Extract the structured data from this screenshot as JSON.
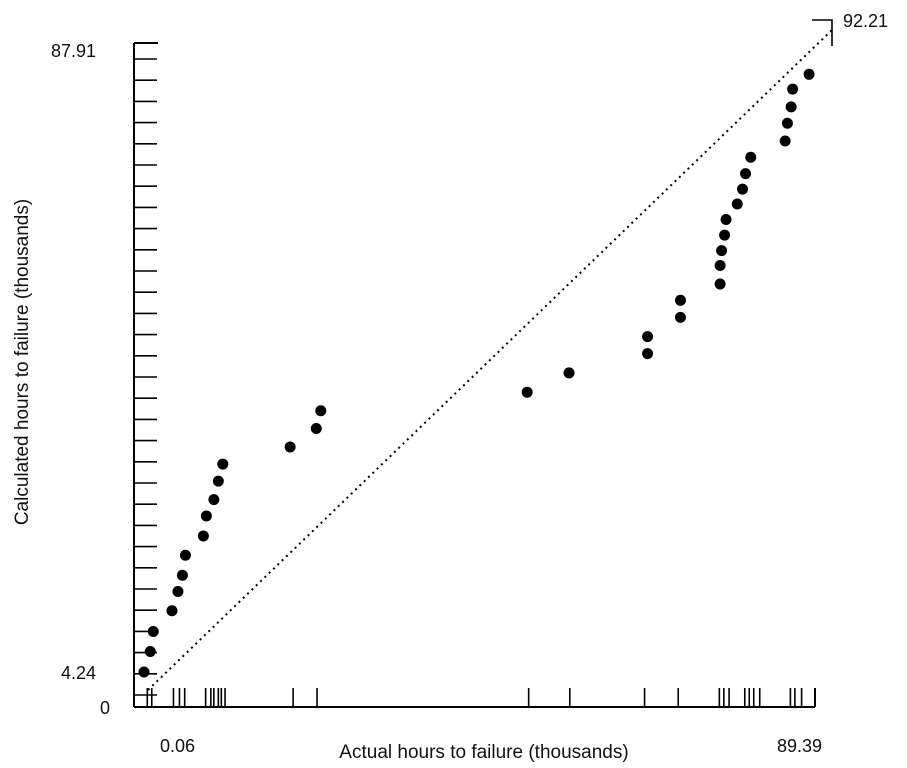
{
  "chart_data": {
    "type": "scatter",
    "title": "",
    "xlabel": "Actual hours to failure (thousands)",
    "ylabel": "Calculated hours to failure (thousands)",
    "xlim": [
      0,
      89.39
    ],
    "ylim": [
      0,
      92.21
    ],
    "y_origin_label": "0",
    "x_tick_labels": [
      "0.06",
      "89.39"
    ],
    "y_tick_labels": [
      "4.24",
      "87.91"
    ],
    "reference_line_label": "92.21",
    "grid": false,
    "legend": "none",
    "reference_line": {
      "from": [
        0.06,
        4.24
      ],
      "to": [
        89.39,
        92.21
      ],
      "style": "dotted"
    },
    "x_rug": [
      0.5,
      1.1,
      4.0,
      4.8,
      5.5,
      8.3,
      9.0,
      9.4,
      10.0,
      10.4,
      10.9,
      20.0,
      23.2,
      51.5,
      57.0,
      67.0,
      71.5,
      77.0,
      77.6,
      78.3,
      80.4,
      81.0,
      81.6,
      82.4,
      86.5,
      87.1,
      88.0
    ],
    "series": [
      {
        "color": "#000000",
        "points": [
          [
            0.06,
            4.24
          ],
          [
            0.9,
            7.0
          ],
          [
            1.3,
            9.7
          ],
          [
            3.8,
            12.5
          ],
          [
            4.6,
            15.1
          ],
          [
            5.2,
            17.3
          ],
          [
            5.6,
            20.0
          ],
          [
            8.0,
            22.6
          ],
          [
            8.4,
            25.3
          ],
          [
            9.4,
            27.5
          ],
          [
            10.0,
            30.0
          ],
          [
            10.6,
            32.3
          ],
          [
            19.6,
            34.6
          ],
          [
            23.1,
            37.1
          ],
          [
            23.7,
            39.5
          ],
          [
            51.3,
            42.0
          ],
          [
            56.9,
            44.6
          ],
          [
            67.4,
            47.2
          ],
          [
            67.4,
            49.5
          ],
          [
            71.8,
            52.1
          ],
          [
            71.8,
            54.4
          ],
          [
            77.1,
            56.6
          ],
          [
            77.1,
            59.1
          ],
          [
            77.3,
            61.1
          ],
          [
            77.7,
            63.2
          ],
          [
            77.9,
            65.3
          ],
          [
            79.4,
            67.4
          ],
          [
            80.1,
            69.4
          ],
          [
            80.5,
            71.5
          ],
          [
            81.2,
            73.7
          ],
          [
            85.8,
            75.9
          ],
          [
            86.1,
            78.3
          ],
          [
            86.6,
            80.5
          ],
          [
            86.8,
            82.9
          ],
          [
            89.0,
            84.9
          ]
        ]
      }
    ]
  }
}
